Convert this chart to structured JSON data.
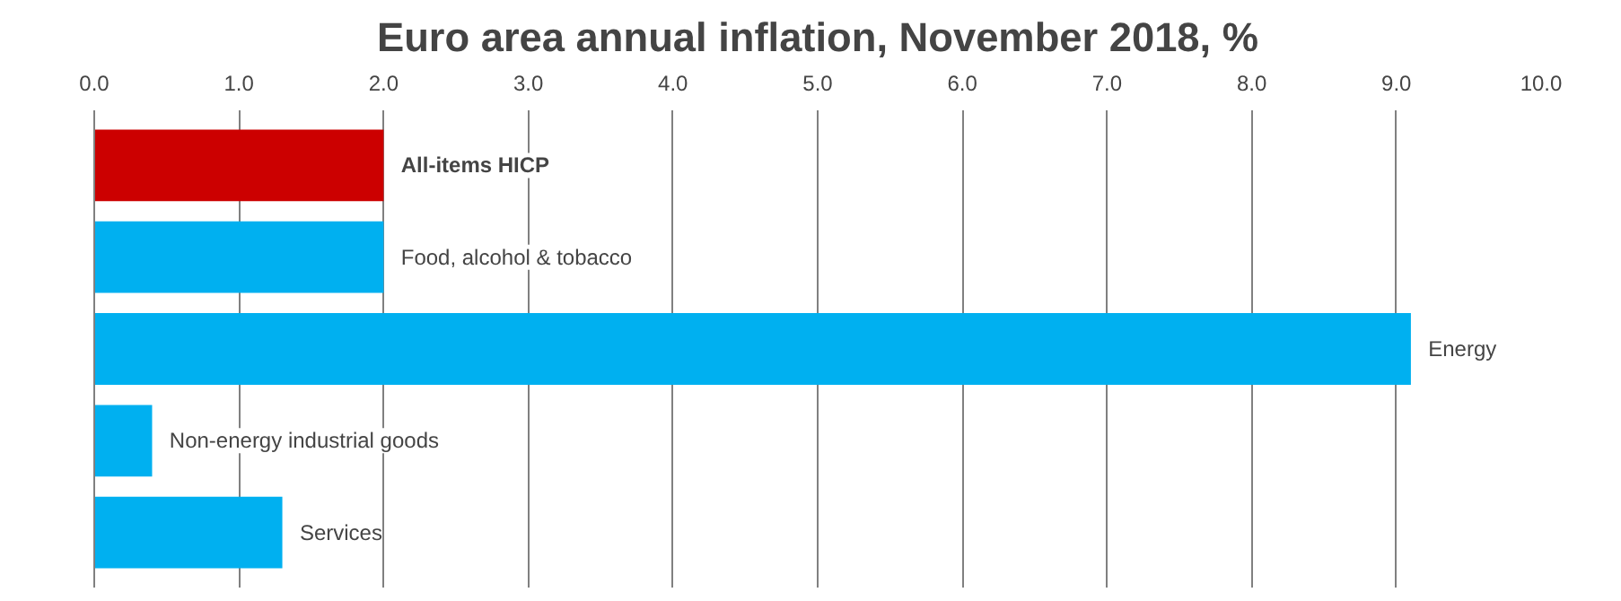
{
  "chart_data": {
    "type": "bar",
    "orientation": "horizontal",
    "title": "Euro area annual inflation, November 2018, %",
    "categories": [
      "All-items HICP",
      "Food, alcohol & tobacco",
      "Energy",
      "Non-energy industrial goods",
      "Services"
    ],
    "values": [
      2.0,
      2.0,
      9.1,
      0.4,
      1.3
    ],
    "colors": [
      "#cc0000",
      "#00b0f0",
      "#00b0f0",
      "#00b0f0",
      "#00b0f0"
    ],
    "xlim": [
      0,
      10
    ],
    "xticks": [
      {
        "value": 0,
        "label": "0.0"
      },
      {
        "value": 1,
        "label": "1.0"
      },
      {
        "value": 2,
        "label": "2.0"
      },
      {
        "value": 3,
        "label": "3.0"
      },
      {
        "value": 4,
        "label": "4.0"
      },
      {
        "value": 5,
        "label": "5.0"
      },
      {
        "value": 6,
        "label": "6.0"
      },
      {
        "value": 7,
        "label": "7.0"
      },
      {
        "value": 8,
        "label": "8.0"
      },
      {
        "value": 9,
        "label": "9.0"
      },
      {
        "value": 10,
        "label": "10.0"
      }
    ],
    "grid": "x",
    "tick_labels": "x"
  }
}
